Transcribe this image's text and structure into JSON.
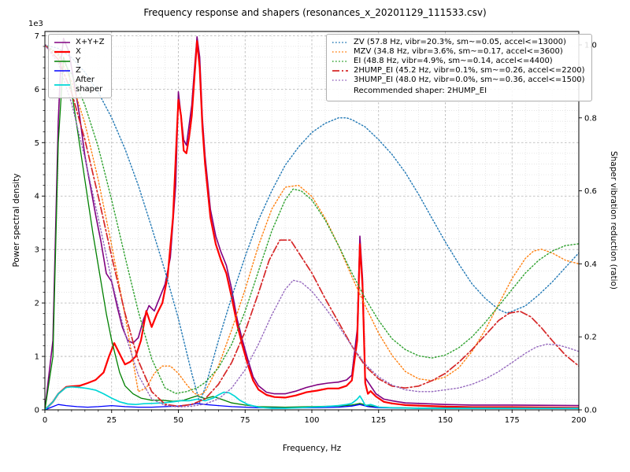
{
  "chart_data": {
    "type": "line",
    "title": "Frequency response and shapers (resonances_x_20201129_111533.csv)",
    "xlabel": "Frequency, Hz",
    "ylabel": "Power spectral density",
    "y2label": "Shaper vibration reduction (ratio)",
    "y_offset_text": "1e3",
    "xlim": [
      0,
      200
    ],
    "ylim_left": [
      0,
      7000
    ],
    "ylim_right": [
      0.0,
      1.0
    ],
    "xticks": [
      0,
      25,
      50,
      75,
      100,
      125,
      150,
      175,
      200
    ],
    "yticks_left": [
      0,
      1,
      2,
      3,
      4,
      5,
      6,
      7
    ],
    "yticks_right": [
      "0.0",
      "0.2",
      "0.4",
      "0.6",
      "0.8",
      "1.0"
    ],
    "grid": "major+minor",
    "legend_left_position": "upper-left",
    "legend_right_position": "upper-right",
    "recommendation": "Recommended shaper: 2HUMP_EI",
    "psd_series": [
      {
        "name": "x-plus-y-plus-z",
        "label": "X+Y+Z",
        "color": "#800080",
        "linestyle": "solid",
        "width": 1.6,
        "axis": "left",
        "x": [
          0,
          3,
          5,
          6,
          7,
          9,
          11,
          13,
          15,
          17,
          19,
          21,
          23,
          25,
          27,
          29,
          31,
          33,
          35,
          37,
          39,
          41,
          43,
          45,
          47,
          49,
          50,
          52,
          53,
          55,
          56,
          57,
          58,
          59,
          60,
          62,
          64,
          66,
          68,
          70,
          72,
          74,
          76,
          78,
          80,
          83,
          86,
          90,
          94,
          98,
          102,
          106,
          110,
          113,
          115,
          117,
          118,
          119,
          120,
          122,
          124,
          127,
          130,
          135,
          140,
          150,
          160,
          175,
          200
        ],
        "y": [
          0,
          1300,
          5400,
          6500,
          6950,
          6700,
          6100,
          5500,
          4750,
          4200,
          3650,
          3150,
          2550,
          2400,
          1950,
          1550,
          1300,
          1250,
          1350,
          1700,
          1950,
          1850,
          2100,
          2350,
          2850,
          4200,
          5950,
          5050,
          4950,
          5700,
          6350,
          6980,
          6600,
          5450,
          4750,
          3750,
          3250,
          2950,
          2700,
          2250,
          1700,
          1300,
          950,
          620,
          450,
          330,
          300,
          300,
          350,
          420,
          470,
          500,
          520,
          560,
          650,
          1500,
          3250,
          2450,
          600,
          450,
          300,
          200,
          170,
          130,
          120,
          100,
          90,
          90,
          80
        ]
      },
      {
        "name": "x",
        "label": "X",
        "color": "#ff0000",
        "linestyle": "solid",
        "width": 2.2,
        "axis": "left",
        "x": [
          0,
          3,
          5,
          8,
          10,
          13,
          16,
          19,
          22,
          24,
          26,
          28,
          30,
          32,
          34,
          36,
          38,
          40,
          42,
          44,
          46,
          48,
          50,
          51,
          52,
          53,
          54,
          55,
          56,
          57,
          58,
          59,
          60,
          62,
          64,
          66,
          68,
          70,
          72,
          74,
          76,
          78,
          80,
          83,
          86,
          90,
          94,
          98,
          102,
          106,
          110,
          113,
          115,
          117,
          118,
          119,
          120,
          121,
          122,
          124,
          127,
          130,
          135,
          140,
          150,
          160,
          175,
          200
        ],
        "y": [
          0,
          150,
          300,
          430,
          440,
          450,
          500,
          560,
          700,
          1000,
          1250,
          1050,
          850,
          900,
          1000,
          1300,
          1850,
          1550,
          1800,
          2000,
          2500,
          3600,
          5800,
          5500,
          4850,
          4800,
          5100,
          5500,
          6200,
          6900,
          6400,
          5300,
          4600,
          3600,
          3100,
          2800,
          2550,
          2100,
          1600,
          1200,
          850,
          550,
          380,
          280,
          240,
          230,
          270,
          330,
          360,
          400,
          400,
          450,
          550,
          1300,
          3100,
          2300,
          500,
          300,
          350,
          250,
          150,
          120,
          90,
          80,
          60,
          50,
          50,
          40
        ]
      },
      {
        "name": "y",
        "label": "Y",
        "color": "#008000",
        "linestyle": "solid",
        "width": 1.3,
        "axis": "left",
        "x": [
          0,
          3,
          5,
          7,
          9,
          12,
          15,
          18,
          20,
          23,
          25,
          28,
          30,
          33,
          36,
          40,
          44,
          48,
          52,
          55,
          57,
          60,
          63,
          66,
          70,
          75,
          80,
          90,
          100,
          110,
          115,
          118,
          121,
          125,
          130,
          140,
          150,
          175,
          200
        ],
        "y": [
          0,
          1000,
          5000,
          6600,
          6300,
          5300,
          4300,
          3300,
          2700,
          1800,
          1300,
          700,
          450,
          300,
          220,
          180,
          180,
          160,
          180,
          230,
          260,
          210,
          250,
          200,
          130,
          90,
          60,
          50,
          60,
          70,
          90,
          120,
          80,
          50,
          40,
          35,
          35,
          30,
          30
        ]
      },
      {
        "name": "z",
        "label": "Z",
        "color": "#0000ff",
        "linestyle": "solid",
        "width": 1.3,
        "axis": "left",
        "x": [
          0,
          3,
          5,
          8,
          12,
          16,
          20,
          25,
          30,
          35,
          40,
          45,
          50,
          55,
          57,
          60,
          65,
          70,
          75,
          80,
          90,
          100,
          110,
          115,
          118,
          121,
          125,
          140,
          160,
          200
        ],
        "y": [
          0,
          60,
          100,
          80,
          60,
          50,
          60,
          80,
          60,
          50,
          50,
          60,
          70,
          100,
          120,
          100,
          80,
          60,
          50,
          40,
          35,
          40,
          50,
          70,
          100,
          60,
          40,
          30,
          30,
          30
        ]
      },
      {
        "name": "after-shaper",
        "label": "After\nshaper",
        "color": "#00d7d7",
        "linestyle": "solid",
        "width": 1.7,
        "axis": "left",
        "x": [
          0,
          3,
          5,
          8,
          10,
          13,
          16,
          19,
          22,
          25,
          28,
          31,
          34,
          37,
          40,
          44,
          48,
          51,
          54,
          57,
          60,
          63,
          65,
          67,
          69,
          71,
          73,
          76,
          80,
          85,
          90,
          95,
          100,
          105,
          110,
          113,
          115,
          117,
          118,
          119,
          120,
          122,
          125,
          130,
          140,
          150,
          175,
          200
        ],
        "y": [
          0,
          150,
          300,
          420,
          430,
          420,
          400,
          370,
          300,
          220,
          150,
          110,
          100,
          115,
          120,
          130,
          150,
          170,
          170,
          200,
          170,
          220,
          280,
          330,
          320,
          260,
          180,
          100,
          50,
          30,
          30,
          40,
          50,
          60,
          80,
          100,
          120,
          200,
          260,
          180,
          80,
          100,
          50,
          40,
          30,
          30,
          30,
          30
        ]
      }
    ],
    "shaper_series": [
      {
        "name": "zv",
        "label": "ZV (57.8 Hz, vibr=20.3%, sm~=0.05, accel<=13000)",
        "color": "#1f77b4",
        "linestyle": "dotted",
        "width": 1.4,
        "axis": "right",
        "x": [
          0,
          5,
          10,
          15,
          20,
          25,
          30,
          35,
          40,
          45,
          50,
          55,
          58,
          60,
          65,
          70,
          75,
          80,
          85,
          90,
          95,
          100,
          105,
          110,
          113,
          115,
          120,
          125,
          130,
          135,
          140,
          145,
          150,
          155,
          160,
          165,
          170,
          173,
          175,
          180,
          185,
          190,
          195,
          200
        ],
        "y": [
          1.0,
          0.99,
          0.965,
          0.925,
          0.87,
          0.8,
          0.715,
          0.615,
          0.5,
          0.38,
          0.25,
          0.1,
          0.02,
          0.06,
          0.19,
          0.31,
          0.42,
          0.52,
          0.6,
          0.67,
          0.72,
          0.76,
          0.785,
          0.8,
          0.8,
          0.795,
          0.775,
          0.74,
          0.7,
          0.65,
          0.59,
          0.525,
          0.46,
          0.4,
          0.345,
          0.305,
          0.275,
          0.265,
          0.27,
          0.285,
          0.315,
          0.35,
          0.39,
          0.43
        ]
      },
      {
        "name": "mzv",
        "label": "MZV (34.8 Hz, vibr=3.6%, sm~=0.17, accel<=3600)",
        "color": "#ff7f0e",
        "linestyle": "dotted",
        "width": 1.4,
        "axis": "right",
        "x": [
          0,
          5,
          10,
          15,
          20,
          25,
          30,
          35,
          38,
          41,
          44,
          47,
          50,
          53,
          56,
          58,
          60,
          65,
          70,
          75,
          80,
          85,
          90,
          95,
          100,
          105,
          110,
          115,
          120,
          125,
          130,
          135,
          140,
          145,
          150,
          155,
          160,
          165,
          170,
          175,
          180,
          183,
          186,
          190,
          195,
          200
        ],
        "y": [
          1.0,
          0.97,
          0.9,
          0.785,
          0.63,
          0.45,
          0.26,
          0.05,
          0.06,
          0.1,
          0.12,
          0.12,
          0.1,
          0.07,
          0.045,
          0.04,
          0.05,
          0.12,
          0.22,
          0.33,
          0.45,
          0.55,
          0.61,
          0.615,
          0.585,
          0.525,
          0.45,
          0.365,
          0.285,
          0.21,
          0.15,
          0.105,
          0.085,
          0.08,
          0.09,
          0.115,
          0.16,
          0.22,
          0.29,
          0.36,
          0.415,
          0.435,
          0.44,
          0.43,
          0.41,
          0.4
        ]
      },
      {
        "name": "ei",
        "label": "EI (48.8 Hz, vibr=4.9%, sm~=0.14, accel<=4400)",
        "color": "#2ca02c",
        "linestyle": "dotted",
        "width": 1.4,
        "axis": "right",
        "x": [
          0,
          5,
          10,
          15,
          20,
          25,
          30,
          35,
          40,
          45,
          49,
          53,
          57,
          60,
          65,
          70,
          75,
          80,
          85,
          90,
          93,
          96,
          100,
          105,
          110,
          115,
          120,
          125,
          130,
          135,
          140,
          145,
          150,
          155,
          160,
          165,
          170,
          175,
          180,
          185,
          190,
          195,
          200
        ],
        "y": [
          1.0,
          0.975,
          0.92,
          0.835,
          0.72,
          0.575,
          0.42,
          0.27,
          0.14,
          0.06,
          0.045,
          0.05,
          0.06,
          0.075,
          0.115,
          0.18,
          0.27,
          0.38,
          0.49,
          0.575,
          0.605,
          0.6,
          0.575,
          0.52,
          0.45,
          0.375,
          0.305,
          0.245,
          0.195,
          0.165,
          0.148,
          0.142,
          0.15,
          0.17,
          0.2,
          0.24,
          0.285,
          0.33,
          0.375,
          0.41,
          0.435,
          0.45,
          0.455
        ]
      },
      {
        "name": "2hump-ei",
        "label": "2HUMP_EI (45.2 Hz, vibr=0.1%, sm~=0.26, accel<=2200)",
        "color": "#d62728",
        "linestyle": "dashdot",
        "width": 1.7,
        "axis": "right",
        "x": [
          0,
          5,
          10,
          15,
          20,
          25,
          30,
          35,
          40,
          45,
          50,
          55,
          60,
          65,
          70,
          75,
          80,
          84,
          88,
          92,
          96,
          100,
          105,
          110,
          115,
          120,
          125,
          130,
          135,
          140,
          145,
          150,
          155,
          160,
          165,
          170,
          174,
          178,
          182,
          186,
          190,
          195,
          200
        ],
        "y": [
          1.0,
          0.96,
          0.87,
          0.74,
          0.585,
          0.42,
          0.265,
          0.135,
          0.05,
          0.015,
          0.01,
          0.015,
          0.03,
          0.07,
          0.13,
          0.215,
          0.32,
          0.41,
          0.465,
          0.465,
          0.42,
          0.375,
          0.305,
          0.24,
          0.175,
          0.12,
          0.085,
          0.065,
          0.06,
          0.065,
          0.08,
          0.1,
          0.13,
          0.165,
          0.205,
          0.245,
          0.265,
          0.27,
          0.255,
          0.225,
          0.19,
          0.15,
          0.12
        ]
      },
      {
        "name": "3hump-ei",
        "label": "3HUMP_EI (48.0 Hz, vibr=0.0%, sm~=0.36, accel<=1500)",
        "color": "#9467bd",
        "linestyle": "dotted",
        "width": 1.4,
        "axis": "right",
        "x": [
          0,
          5,
          10,
          15,
          20,
          25,
          30,
          35,
          40,
          45,
          50,
          55,
          60,
          65,
          70,
          75,
          80,
          85,
          90,
          93,
          96,
          100,
          105,
          110,
          115,
          120,
          125,
          130,
          135,
          140,
          145,
          150,
          155,
          160,
          165,
          170,
          175,
          180,
          184,
          188,
          192,
          196,
          200
        ],
        "y": [
          1.0,
          0.95,
          0.84,
          0.69,
          0.525,
          0.355,
          0.21,
          0.095,
          0.03,
          0.012,
          0.008,
          0.01,
          0.016,
          0.03,
          0.06,
          0.11,
          0.18,
          0.26,
          0.33,
          0.355,
          0.35,
          0.325,
          0.28,
          0.23,
          0.175,
          0.125,
          0.09,
          0.068,
          0.055,
          0.05,
          0.05,
          0.055,
          0.06,
          0.07,
          0.085,
          0.105,
          0.13,
          0.155,
          0.172,
          0.18,
          0.178,
          0.17,
          0.16
        ]
      }
    ]
  }
}
